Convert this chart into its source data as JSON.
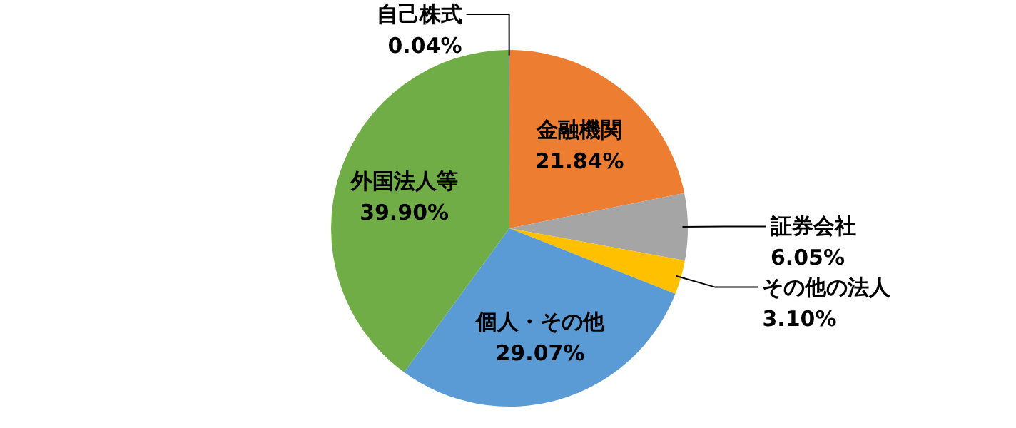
{
  "chart_data": {
    "type": "pie",
    "categories": [
      "金融機関",
      "証券会社",
      "その他の法人",
      "個人・その他",
      "外国法人等",
      "自己株式"
    ],
    "values": [
      21.84,
      6.05,
      3.1,
      29.07,
      39.9,
      0.04
    ],
    "value_labels": [
      "21.84%",
      "6.05%",
      "3.10%",
      "29.07%",
      "39.90%",
      "0.04%"
    ],
    "colors": [
      "#ed7d31",
      "#a5a5a5",
      "#ffc000",
      "#5b9bd5",
      "#70ad47",
      "#4472c4"
    ]
  }
}
